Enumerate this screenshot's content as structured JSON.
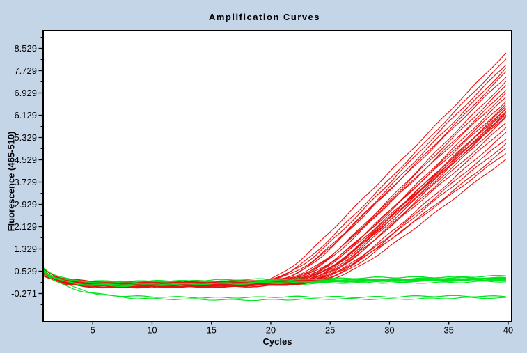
{
  "window": {
    "background": "#c3d5e6",
    "plot_background": "#ffffff"
  },
  "chart_data": {
    "type": "line",
    "title": "Amplification Curves",
    "xlabel": "Cycles",
    "ylabel": "Fluorescence (465-510)",
    "x_ticks": [
      5,
      10,
      15,
      20,
      25,
      30,
      35,
      40
    ],
    "y_ticks": [
      8.529,
      7.729,
      6.929,
      6.129,
      5.329,
      4.529,
      3.729,
      2.929,
      2.129,
      1.329,
      0.529,
      -0.271
    ],
    "xlim": [
      0.82,
      40.4
    ],
    "ylim": [
      -1.271,
      9.154
    ],
    "grid": false,
    "legend": "none",
    "colors": {
      "amplified": "#e81010",
      "negative": "#00e41e",
      "axis": "#000000",
      "text": "#000000"
    },
    "series_model": "value(c) = base + drift*(c-1)/39 + (init-base)*exp(-(c-1)/tau) ; amplified curves add sigmoidal rise starting at cycle ct reaching 'end' at cycle 40",
    "series": [
      {
        "group": "amplified",
        "init": 0.42,
        "base": -0.05,
        "drift": 0.12,
        "ct": 20.6,
        "end": 8.43
      },
      {
        "group": "amplified",
        "init": 0.5,
        "base": 0.02,
        "drift": 0.12,
        "ct": 21.4,
        "end": 8.22
      },
      {
        "group": "amplified",
        "init": 0.38,
        "base": 0.08,
        "drift": 0.12,
        "ct": 21.8,
        "end": 8.05
      },
      {
        "group": "amplified",
        "init": 0.45,
        "base": -0.02,
        "drift": 0.12,
        "ct": 22.0,
        "end": 7.9
      },
      {
        "group": "amplified",
        "init": 0.52,
        "base": 0.05,
        "drift": 0.12,
        "ct": 22.3,
        "end": 7.75
      },
      {
        "group": "amplified",
        "init": 0.35,
        "base": 0.1,
        "drift": 0.12,
        "ct": 22.1,
        "end": 7.58
      },
      {
        "group": "amplified",
        "init": 0.48,
        "base": -0.08,
        "drift": 0.12,
        "ct": 22.7,
        "end": 7.42
      },
      {
        "group": "amplified",
        "init": 0.4,
        "base": 0.0,
        "drift": 0.12,
        "ct": 22.9,
        "end": 7.28
      },
      {
        "group": "amplified",
        "init": 0.44,
        "base": 0.06,
        "drift": 0.12,
        "ct": 23.2,
        "end": 7.12
      },
      {
        "group": "amplified",
        "init": 0.55,
        "base": 0.12,
        "drift": 0.12,
        "ct": 23.0,
        "end": 6.98
      },
      {
        "group": "amplified",
        "init": 0.37,
        "base": -0.04,
        "drift": 0.12,
        "ct": 23.5,
        "end": 6.85
      },
      {
        "group": "amplified",
        "init": 0.46,
        "base": 0.03,
        "drift": 0.12,
        "ct": 23.7,
        "end": 6.72
      },
      {
        "group": "amplified",
        "init": 0.41,
        "base": 0.09,
        "drift": 0.12,
        "ct": 23.6,
        "end": 6.6
      },
      {
        "group": "amplified",
        "init": 0.5,
        "base": -0.06,
        "drift": 0.12,
        "ct": 23.9,
        "end": 6.52
      },
      {
        "group": "amplified",
        "init": 0.36,
        "base": 0.01,
        "drift": 0.12,
        "ct": 24.1,
        "end": 6.45
      },
      {
        "group": "amplified",
        "init": 0.43,
        "base": 0.07,
        "drift": 0.12,
        "ct": 23.8,
        "end": 6.4
      },
      {
        "group": "amplified",
        "init": 0.49,
        "base": -0.03,
        "drift": 0.12,
        "ct": 24.2,
        "end": 6.35
      },
      {
        "group": "amplified",
        "init": 0.39,
        "base": 0.04,
        "drift": 0.12,
        "ct": 24.0,
        "end": 6.3
      },
      {
        "group": "amplified",
        "init": 0.47,
        "base": 0.11,
        "drift": 0.12,
        "ct": 24.3,
        "end": 6.27
      },
      {
        "group": "amplified",
        "init": 0.34,
        "base": -0.01,
        "drift": 0.12,
        "ct": 24.5,
        "end": 6.22
      },
      {
        "group": "amplified",
        "init": 0.53,
        "base": 0.05,
        "drift": 0.12,
        "ct": 24.2,
        "end": 6.18
      },
      {
        "group": "amplified",
        "init": 0.4,
        "base": -0.07,
        "drift": 0.12,
        "ct": 24.6,
        "end": 6.12
      },
      {
        "group": "amplified",
        "init": 0.45,
        "base": 0.02,
        "drift": 0.12,
        "ct": 24.8,
        "end": 5.95
      },
      {
        "group": "amplified",
        "init": 0.38,
        "base": 0.08,
        "drift": 0.12,
        "ct": 24.7,
        "end": 5.75
      },
      {
        "group": "amplified",
        "init": 0.51,
        "base": 0.0,
        "drift": 0.12,
        "ct": 25.1,
        "end": 5.55
      },
      {
        "group": "amplified",
        "init": 0.42,
        "base": 0.06,
        "drift": 0.12,
        "ct": 25.3,
        "end": 5.35
      },
      {
        "group": "amplified",
        "init": 0.36,
        "base": -0.05,
        "drift": 0.12,
        "ct": 25.0,
        "end": 5.18
      },
      {
        "group": "amplified",
        "init": 0.48,
        "base": 0.03,
        "drift": 0.12,
        "ct": 25.6,
        "end": 5.0
      },
      {
        "group": "amplified",
        "init": 0.44,
        "base": 0.1,
        "drift": 0.12,
        "ct": 25.4,
        "end": 4.82
      },
      {
        "group": "amplified",
        "init": 0.4,
        "base": 0.01,
        "drift": 0.12,
        "ct": 25.9,
        "end": 4.6
      },
      {
        "group": "negative",
        "init": 0.6,
        "base": 0.1,
        "drift": 0.2
      },
      {
        "group": "negative",
        "init": 0.45,
        "base": 0.02,
        "drift": 0.25
      },
      {
        "group": "negative",
        "init": 0.4,
        "base": 0.12,
        "drift": 0.15
      },
      {
        "group": "negative",
        "init": 0.5,
        "base": -0.03,
        "drift": 0.3
      },
      {
        "group": "negative",
        "init": 0.35,
        "base": 0.07,
        "drift": 0.18
      },
      {
        "group": "negative",
        "init": 0.42,
        "base": 0.14,
        "drift": 0.12
      },
      {
        "group": "negative",
        "init": 0.48,
        "base": 0.0,
        "drift": 0.28
      },
      {
        "group": "negative",
        "init": 0.38,
        "base": 0.05,
        "drift": 0.22
      },
      {
        "group": "negative",
        "init": 0.44,
        "base": 0.1,
        "drift": 0.1
      },
      {
        "group": "negative",
        "init": 0.52,
        "base": -0.05,
        "drift": 0.32
      },
      {
        "group": "negative",
        "init": 0.36,
        "base": 0.03,
        "drift": 0.2
      },
      {
        "group": "negative",
        "init": 0.46,
        "base": 0.08,
        "drift": 0.16
      },
      {
        "group": "negative",
        "init": 0.4,
        "base": 0.12,
        "drift": 0.24
      },
      {
        "group": "negative",
        "init": 0.3,
        "base": 0.01,
        "drift": 0.14
      },
      {
        "group": "negative",
        "init": 0.5,
        "base": -0.55,
        "drift": 0.12,
        "tau": 3.2
      },
      {
        "group": "negative",
        "init": 0.42,
        "base": -0.44,
        "drift": 0.08,
        "tau": 2.6
      }
    ]
  }
}
